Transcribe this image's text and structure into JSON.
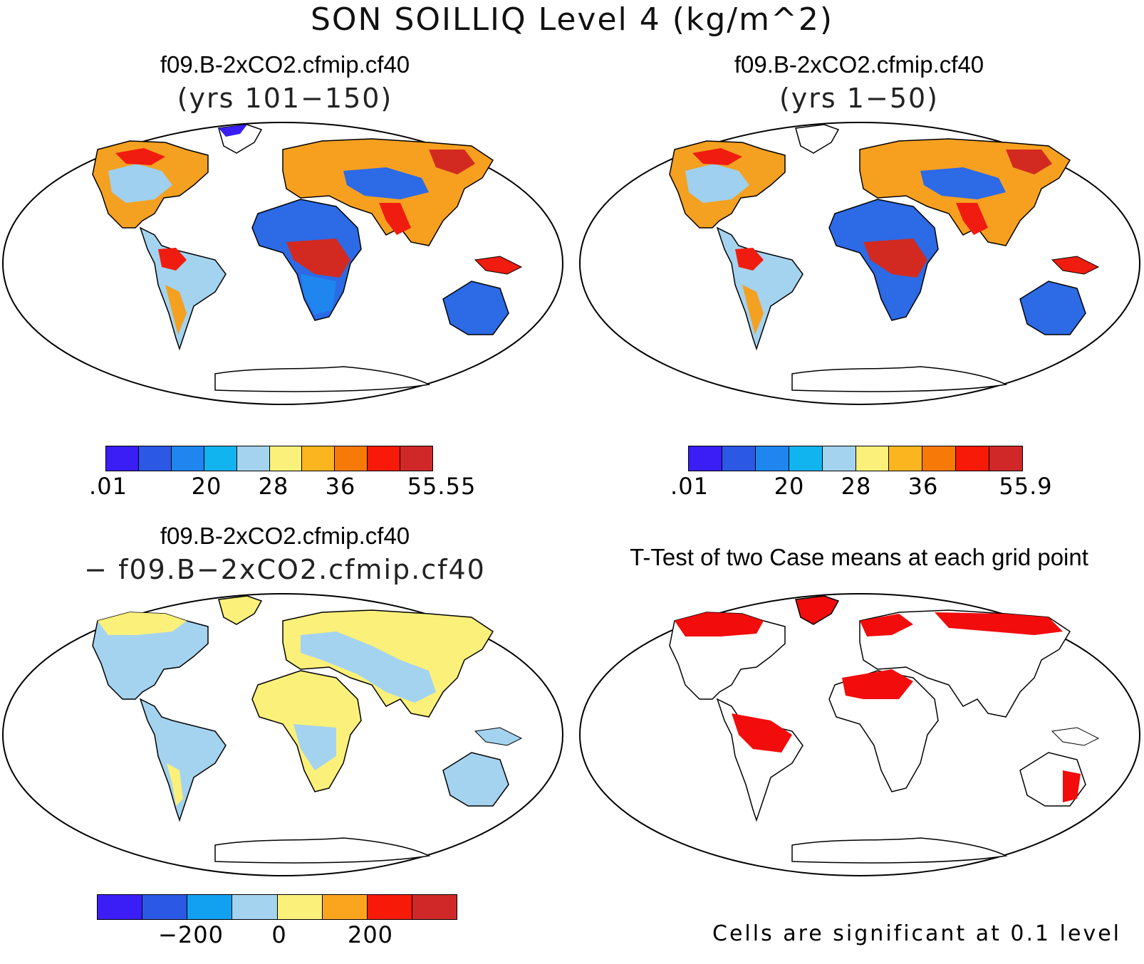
{
  "figure": {
    "title": "SON SOILLIQ Level 4 (kg/m^2)"
  },
  "panels": [
    {
      "id": "case1",
      "title": "f09.B-2xCO2.cfmip.cf40",
      "subtitle": "(yrs 101−150)",
      "colorbar": {
        "colors": [
          "#3a1ef5",
          "#2c58e6",
          "#1f86f0",
          "#12b4f0",
          "#a4d3ef",
          "#fbf07a",
          "#fbb51e",
          "#f77a08",
          "#f71a08",
          "#d02828"
        ],
        "labels": [
          ".01",
          "20",
          "28",
          "36",
          "55.55"
        ]
      }
    },
    {
      "id": "case2",
      "title": "f09.B-2xCO2.cfmip.cf40",
      "subtitle": "(yrs 1−50)",
      "colorbar": {
        "colors": [
          "#3a1ef5",
          "#2c58e6",
          "#1f86f0",
          "#12b4f0",
          "#a4d3ef",
          "#fbf07a",
          "#fbb51e",
          "#f77a08",
          "#f71a08",
          "#d02828"
        ],
        "labels": [
          ".01",
          "20",
          "28",
          "36",
          "55.9"
        ]
      }
    },
    {
      "id": "diff",
      "title": "f09.B-2xCO2.cfmip.cf40",
      "subtitle": "− f09.B−2xCO2.cfmip.cf40",
      "colorbar": {
        "colors": [
          "#3a1ef5",
          "#2c58e6",
          "#12a0f0",
          "#a4d3ef",
          "#fbf07a",
          "#fba51e",
          "#f71a08",
          "#d02828"
        ],
        "labels": [
          "−200",
          "0",
          "200"
        ]
      }
    },
    {
      "id": "ttest",
      "title": "T-Test of two Case means at each grid point",
      "note": "Cells are significant at 0.1 level",
      "significant_color": "#f20c0c"
    }
  ]
}
